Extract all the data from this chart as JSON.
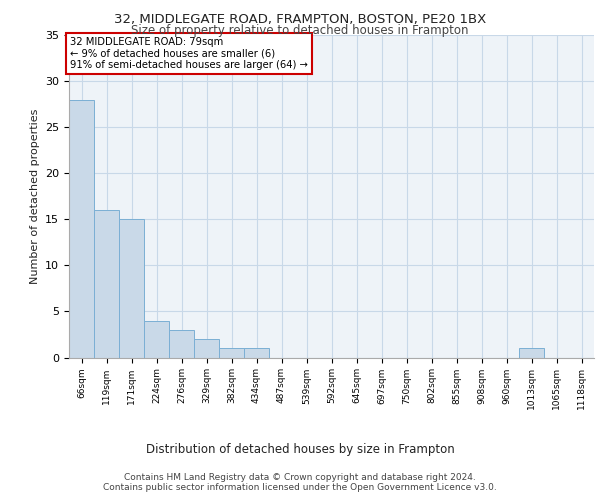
{
  "title1": "32, MIDDLEGATE ROAD, FRAMPTON, BOSTON, PE20 1BX",
  "title2": "Size of property relative to detached houses in Frampton",
  "xlabel": "Distribution of detached houses by size in Frampton",
  "ylabel": "Number of detached properties",
  "categories": [
    "66sqm",
    "119sqm",
    "171sqm",
    "224sqm",
    "276sqm",
    "329sqm",
    "382sqm",
    "434sqm",
    "487sqm",
    "539sqm",
    "592sqm",
    "645sqm",
    "697sqm",
    "750sqm",
    "802sqm",
    "855sqm",
    "908sqm",
    "960sqm",
    "1013sqm",
    "1065sqm",
    "1118sqm"
  ],
  "values": [
    28,
    16,
    15,
    4,
    3,
    2,
    1,
    1,
    0,
    0,
    0,
    0,
    0,
    0,
    0,
    0,
    0,
    0,
    1,
    0,
    0
  ],
  "bar_color": "#c9d9e8",
  "bar_edge_color": "#7bafd4",
  "annotation_box_text": "32 MIDDLEGATE ROAD: 79sqm\n← 9% of detached houses are smaller (6)\n91% of semi-detached houses are larger (64) →",
  "annotation_box_color": "#ffffff",
  "annotation_box_edge_color": "#cc0000",
  "grid_color": "#c8d8e8",
  "background_color": "#eef3f8",
  "footer_text": "Contains HM Land Registry data © Crown copyright and database right 2024.\nContains public sector information licensed under the Open Government Licence v3.0.",
  "ylim": [
    0,
    35
  ],
  "yticks": [
    0,
    5,
    10,
    15,
    20,
    25,
    30,
    35
  ]
}
